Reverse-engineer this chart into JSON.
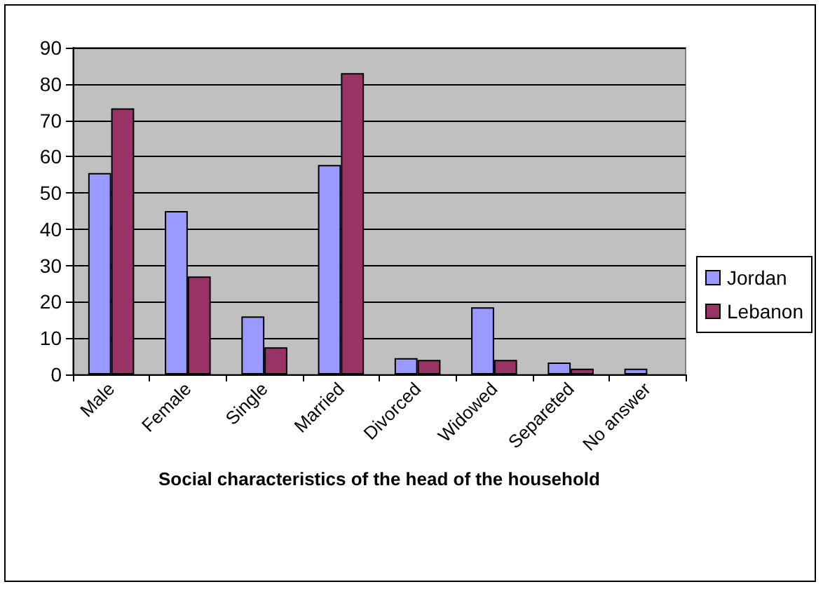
{
  "chart_data": {
    "type": "bar",
    "xlabel": "Social characteristics of the head of the household",
    "categories": [
      "Male",
      "Female",
      "Single",
      "Married",
      "Divorced",
      "Widowed",
      "Separeted",
      "No answer"
    ],
    "series": [
      {
        "name": "Jordan",
        "color": "#9999ff",
        "values": [
          55.5,
          45,
          16,
          57.7,
          4.5,
          18.5,
          3.3,
          1.6
        ]
      },
      {
        "name": "Lebanon",
        "color": "#993366",
        "values": [
          73.3,
          27,
          7.5,
          83,
          4,
          4,
          1.6,
          null
        ]
      }
    ],
    "ylim": [
      0,
      90
    ],
    "yticks": [
      0,
      10,
      20,
      30,
      40,
      50,
      60,
      70,
      80,
      90
    ],
    "grid": "y",
    "legend": "right"
  }
}
